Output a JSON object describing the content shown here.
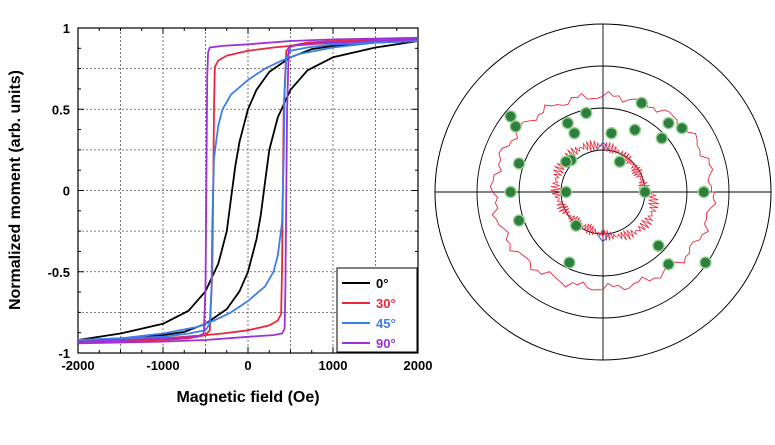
{
  "chart_data": [
    {
      "type": "line",
      "xlabel": "Magnetic field (Oe)",
      "ylabel": "Normalized moment (arb. units)",
      "xlim": [
        -2000,
        2000
      ],
      "ylim": [
        -1,
        1
      ],
      "x_ticks": [
        "-2000",
        "-1000",
        "0",
        "1000",
        "2000"
      ],
      "y_ticks": [
        "1",
        "0.5",
        "0",
        "-0.5",
        "-1"
      ],
      "grid": true,
      "legend_placement": "bottom-right",
      "series": [
        {
          "name": "0°",
          "color": "#000000",
          "upper": [
            [
              -2000,
              -0.92
            ],
            [
              -1500,
              -0.88
            ],
            [
              -1000,
              -0.82
            ],
            [
              -700,
              -0.74
            ],
            [
              -500,
              -0.62
            ],
            [
              -350,
              -0.45
            ],
            [
              -250,
              -0.25
            ],
            [
              -200,
              -0.05
            ],
            [
              -150,
              0.15
            ],
            [
              -100,
              0.3
            ],
            [
              0,
              0.5
            ],
            [
              100,
              0.62
            ],
            [
              250,
              0.73
            ],
            [
              500,
              0.82
            ],
            [
              750,
              0.87
            ],
            [
              1000,
              0.89
            ],
            [
              1500,
              0.91
            ],
            [
              2000,
              0.92
            ]
          ],
          "lower": [
            [
              2000,
              0.92
            ],
            [
              1500,
              0.88
            ],
            [
              1000,
              0.82
            ],
            [
              700,
              0.74
            ],
            [
              500,
              0.62
            ],
            [
              350,
              0.45
            ],
            [
              250,
              0.25
            ],
            [
              200,
              0.05
            ],
            [
              150,
              -0.15
            ],
            [
              100,
              -0.3
            ],
            [
              0,
              -0.5
            ],
            [
              -100,
              -0.62
            ],
            [
              -250,
              -0.73
            ],
            [
              -500,
              -0.82
            ],
            [
              -750,
              -0.87
            ],
            [
              -1000,
              -0.89
            ],
            [
              -1500,
              -0.91
            ],
            [
              -2000,
              -0.92
            ]
          ]
        },
        {
          "name": "30°",
          "color": "#e8283a",
          "upper": [
            [
              -2000,
              -0.93
            ],
            [
              -1000,
              -0.92
            ],
            [
              -700,
              -0.91
            ],
            [
              -500,
              -0.89
            ],
            [
              -450,
              -0.86
            ],
            [
              -420,
              -0.5
            ],
            [
              -410,
              0.0
            ],
            [
              -400,
              0.5
            ],
            [
              -390,
              0.76
            ],
            [
              -350,
              0.8
            ],
            [
              -250,
              0.83
            ],
            [
              0,
              0.86
            ],
            [
              300,
              0.88
            ],
            [
              500,
              0.89
            ],
            [
              1000,
              0.91
            ],
            [
              1500,
              0.92
            ],
            [
              2000,
              0.93
            ]
          ],
          "lower": [
            [
              2000,
              0.93
            ],
            [
              1000,
              0.92
            ],
            [
              700,
              0.91
            ],
            [
              500,
              0.89
            ],
            [
              450,
              0.86
            ],
            [
              420,
              0.5
            ],
            [
              410,
              0.0
            ],
            [
              400,
              -0.5
            ],
            [
              390,
              -0.76
            ],
            [
              350,
              -0.8
            ],
            [
              250,
              -0.83
            ],
            [
              0,
              -0.86
            ],
            [
              -300,
              -0.88
            ],
            [
              -500,
              -0.89
            ],
            [
              -1000,
              -0.91
            ],
            [
              -1500,
              -0.92
            ],
            [
              -2000,
              -0.93
            ]
          ]
        },
        {
          "name": "45°",
          "color": "#3a7ee8",
          "upper": [
            [
              -2000,
              -0.92
            ],
            [
              -1500,
              -0.91
            ],
            [
              -1000,
              -0.9
            ],
            [
              -700,
              -0.88
            ],
            [
              -500,
              -0.86
            ],
            [
              -450,
              -0.82
            ],
            [
              -430,
              -0.6
            ],
            [
              -420,
              -0.2
            ],
            [
              -400,
              0.2
            ],
            [
              -350,
              0.4
            ],
            [
              -300,
              0.5
            ],
            [
              -200,
              0.59
            ],
            [
              0,
              0.68
            ],
            [
              200,
              0.75
            ],
            [
              400,
              0.8
            ],
            [
              600,
              0.84
            ],
            [
              1000,
              0.88
            ],
            [
              1500,
              0.91
            ],
            [
              2000,
              0.92
            ]
          ],
          "lower": [
            [
              2000,
              0.92
            ],
            [
              1500,
              0.91
            ],
            [
              1000,
              0.9
            ],
            [
              700,
              0.88
            ],
            [
              500,
              0.86
            ],
            [
              450,
              0.82
            ],
            [
              430,
              0.6
            ],
            [
              420,
              0.2
            ],
            [
              400,
              -0.2
            ],
            [
              350,
              -0.4
            ],
            [
              300,
              -0.5
            ],
            [
              200,
              -0.59
            ],
            [
              0,
              -0.68
            ],
            [
              -200,
              -0.75
            ],
            [
              -400,
              -0.8
            ],
            [
              -600,
              -0.84
            ],
            [
              -1000,
              -0.88
            ],
            [
              -1500,
              -0.91
            ],
            [
              -2000,
              -0.92
            ]
          ]
        },
        {
          "name": "90°",
          "color": "#9b32d6",
          "upper": [
            [
              -2000,
              -0.93
            ],
            [
              -1500,
              -0.92
            ],
            [
              -1000,
              -0.91
            ],
            [
              -600,
              -0.9
            ],
            [
              -520,
              -0.88
            ],
            [
              -500,
              -0.6
            ],
            [
              -490,
              0.0
            ],
            [
              -480,
              0.7
            ],
            [
              -470,
              0.85
            ],
            [
              -450,
              0.88
            ],
            [
              -300,
              0.89
            ],
            [
              0,
              0.9
            ],
            [
              500,
              0.92
            ],
            [
              1000,
              0.93
            ],
            [
              2000,
              0.94
            ]
          ],
          "lower": [
            [
              2000,
              0.93
            ],
            [
              1500,
              0.92
            ],
            [
              1000,
              0.91
            ],
            [
              600,
              0.9
            ],
            [
              480,
              0.88
            ],
            [
              460,
              0.5
            ],
            [
              450,
              0.0
            ],
            [
              440,
              -0.6
            ],
            [
              430,
              -0.85
            ],
            [
              400,
              -0.88
            ],
            [
              300,
              -0.89
            ],
            [
              0,
              -0.9
            ],
            [
              -500,
              -0.92
            ],
            [
              -1000,
              -0.93
            ],
            [
              -2000,
              -0.94
            ]
          ]
        }
      ]
    },
    {
      "type": "polar",
      "grid": true,
      "rings": 4,
      "grid_color": "#000000",
      "spot_color": "#2f7d3f",
      "spot_edge_color": "#8fd28f",
      "spots_pos": [
        [
          -0.17,
          0.35
        ],
        [
          -0.19,
          0.19
        ],
        [
          -0.22,
          0.0
        ],
        [
          -0.16,
          -0.2
        ],
        [
          0.25,
          0.0
        ],
        [
          0.39,
          -0.43
        ],
        [
          0.23,
          0.53
        ],
        [
          0.47,
          0.38
        ],
        [
          0.6,
          0.0
        ],
        [
          0.61,
          -0.42
        ],
        [
          0.33,
          -0.32
        ],
        [
          0.35,
          0.32
        ]
      ],
      "spots_neg": [
        [
          -0.55,
          0.0
        ],
        [
          -0.5,
          0.17
        ],
        [
          -0.22,
          0.18
        ],
        [
          0.1,
          0.18
        ],
        [
          -0.5,
          -0.17
        ],
        [
          -0.2,
          -0.42
        ],
        [
          -0.55,
          0.45
        ],
        [
          -0.1,
          0.47
        ],
        [
          0.05,
          0.35
        ]
      ],
      "spots_polar": [
        [
          -0.52,
          0.39
        ],
        [
          -0.21,
          0.41
        ],
        [
          0.19,
          0.37
        ],
        [
          0.39,
          0.41
        ]
      ],
      "contour_color": "#e8283a",
      "inner_contour_color": "#e8283a",
      "inner_blue_color": "#3a5ee8"
    }
  ]
}
